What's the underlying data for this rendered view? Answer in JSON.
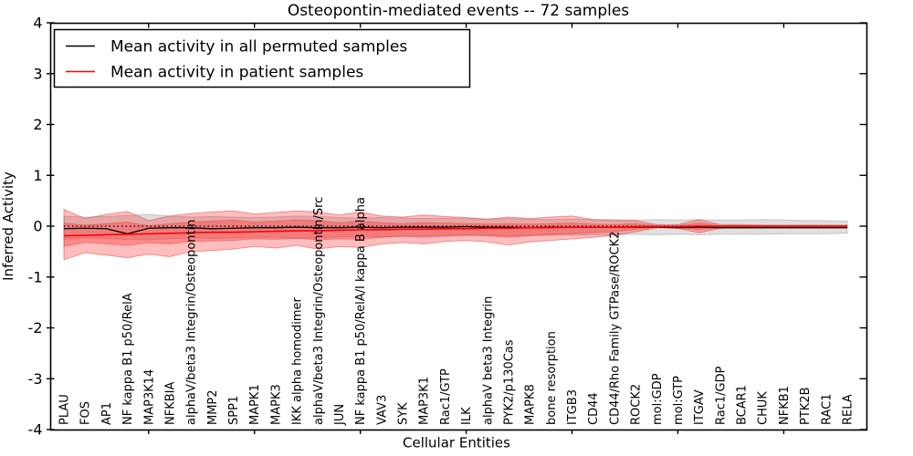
{
  "chart_data": {
    "type": "line",
    "title": "Osteopontin-mediated events -- 72 samples",
    "xlabel": "Cellular Entities",
    "ylabel": "Inferred Activity",
    "ylim": [
      -4,
      4
    ],
    "yticks": [
      4,
      3,
      2,
      1,
      0,
      -1,
      -2,
      -3,
      -4
    ],
    "xtick_positions": [
      5,
      10,
      15,
      20,
      25,
      30,
      35
    ],
    "grid": false,
    "legend": {
      "position": "upper left",
      "entries": [
        {
          "label": "Mean activity in all permuted samples",
          "color": "#000000"
        },
        {
          "label": "Mean activity in patient samples",
          "color": "#ff0000"
        }
      ]
    },
    "categories": [
      "PLAU",
      "FOS",
      "AP1",
      "NF kappa B1 p50/RelA",
      "MAP3K14",
      "NFKBIA",
      "alphaV/beta3 Integrin/Osteopontin",
      "MMP2",
      "SPP1",
      "MAPK1",
      "MAPK3",
      "IKK alpha homodimer",
      "alphaV/beta3 Integrin/Osteopontin/Src",
      "JUN",
      "NF kappa B1 p50/RelA/I kappa B alpha",
      "VAV3",
      "SYK",
      "MAP3K1",
      "Rac1/GTP",
      "ILK",
      "alphaV beta3 Integrin",
      "PYK2/p130Cas",
      "MAPK8",
      "bone resorption",
      "ITGB3",
      "CD44",
      "CD44/Rho Family GTPase/ROCK2",
      "ROCK2",
      "mol:GDP",
      "mol:GTP",
      "ITGAV",
      "Rac1/GDP",
      "BCAR1",
      "CHUK",
      "NFKB1",
      "PTK2B",
      "RAC1",
      "RELA"
    ],
    "reference_line": {
      "y": 0,
      "style": "dotted",
      "color": "#000000"
    },
    "series": [
      {
        "name": "permuted-mean",
        "color": "#000000",
        "width": 1.3,
        "values": [
          -0.05,
          -0.04,
          -0.05,
          -0.15,
          -0.04,
          -0.03,
          -0.03,
          -0.05,
          -0.04,
          -0.03,
          -0.03,
          -0.02,
          -0.03,
          -0.03,
          -0.02,
          -0.03,
          -0.02,
          -0.02,
          -0.02,
          -0.01,
          -0.02,
          -0.02,
          -0.03,
          -0.02,
          -0.02,
          -0.02,
          -0.02,
          -0.02,
          -0.02,
          -0.03,
          -0.02,
          -0.03,
          -0.03,
          -0.03,
          -0.03,
          -0.03,
          -0.03,
          -0.03
        ]
      },
      {
        "name": "patient-mean",
        "color": "#ff0000",
        "width": 1.6,
        "values": [
          -0.19,
          -0.18,
          -0.17,
          -0.16,
          -0.15,
          -0.14,
          -0.13,
          -0.12,
          -0.12,
          -0.11,
          -0.1,
          -0.09,
          -0.09,
          -0.08,
          -0.07,
          -0.07,
          -0.06,
          -0.06,
          -0.05,
          -0.05,
          -0.04,
          -0.04,
          -0.03,
          -0.03,
          -0.02,
          -0.02,
          -0.02,
          -0.01,
          -0.01,
          -0.01,
          0.0,
          0.0,
          0.0,
          0.0,
          0.0,
          0.0,
          0.0,
          0.0
        ]
      }
    ],
    "bands": [
      {
        "name": "permuted-std",
        "fill": "rgba(110,110,110,0.22)",
        "stroke": "rgba(80,80,80,0.25)",
        "upper": [
          0.2,
          0.18,
          0.19,
          0.21,
          0.23,
          0.2,
          0.18,
          0.19,
          0.18,
          0.17,
          0.18,
          0.2,
          0.19,
          0.17,
          0.16,
          0.17,
          0.16,
          0.15,
          0.16,
          0.15,
          0.14,
          0.15,
          0.14,
          0.13,
          0.14,
          0.13,
          0.13,
          0.12,
          0.13,
          0.12,
          0.13,
          0.12,
          0.12,
          0.13,
          0.12,
          0.11,
          0.11,
          0.1
        ],
        "lower": [
          -0.26,
          -0.23,
          -0.24,
          -0.26,
          -0.27,
          -0.25,
          -0.23,
          -0.24,
          -0.23,
          -0.22,
          -0.22,
          -0.24,
          -0.23,
          -0.21,
          -0.2,
          -0.21,
          -0.2,
          -0.19,
          -0.2,
          -0.19,
          -0.18,
          -0.19,
          -0.18,
          -0.17,
          -0.18,
          -0.17,
          -0.17,
          -0.16,
          -0.17,
          -0.16,
          -0.17,
          -0.16,
          -0.16,
          -0.16,
          -0.15,
          -0.15,
          -0.15,
          -0.14
        ]
      },
      {
        "name": "patient-std-outer",
        "fill": "rgba(255,40,40,0.30)",
        "stroke": "rgba(230,40,40,0.45)",
        "upper": [
          0.33,
          0.15,
          0.23,
          0.29,
          0.11,
          0.2,
          0.25,
          0.28,
          0.3,
          0.24,
          0.27,
          0.3,
          0.28,
          0.22,
          0.28,
          0.2,
          0.18,
          0.22,
          0.19,
          0.17,
          0.14,
          0.18,
          0.15,
          0.18,
          0.2,
          0.13,
          0.11,
          0.11,
          0.03,
          0.03,
          0.13,
          0.03,
          0.03,
          0.02,
          0.02,
          0.02,
          0.02,
          0.02
        ],
        "lower": [
          -0.66,
          -0.52,
          -0.57,
          -0.62,
          -0.55,
          -0.6,
          -0.5,
          -0.48,
          -0.45,
          -0.4,
          -0.43,
          -0.38,
          -0.45,
          -0.4,
          -0.42,
          -0.35,
          -0.32,
          -0.35,
          -0.3,
          -0.28,
          -0.31,
          -0.37,
          -0.31,
          -0.28,
          -0.25,
          -0.22,
          -0.18,
          -0.11,
          -0.03,
          -0.04,
          -0.13,
          -0.04,
          -0.03,
          -0.03,
          -0.02,
          -0.02,
          -0.02,
          -0.02
        ]
      },
      {
        "name": "patient-std-inner",
        "fill": "rgba(255,40,40,0.34)",
        "stroke": "rgba(230,40,40,0.35)",
        "upper": [
          0.06,
          0.02,
          0.05,
          0.08,
          0.01,
          0.05,
          0.08,
          0.1,
          0.12,
          0.08,
          0.1,
          0.12,
          0.11,
          0.07,
          0.1,
          0.07,
          0.05,
          0.07,
          0.06,
          0.05,
          0.04,
          0.05,
          0.04,
          0.05,
          0.06,
          0.04,
          0.03,
          0.05,
          0.01,
          0.01,
          0.06,
          0.01,
          0.01,
          0.01,
          0.01,
          0.01,
          0.01,
          0.01
        ],
        "lower": [
          -0.4,
          -0.32,
          -0.35,
          -0.38,
          -0.33,
          -0.35,
          -0.3,
          -0.29,
          -0.28,
          -0.25,
          -0.26,
          -0.24,
          -0.27,
          -0.25,
          -0.26,
          -0.22,
          -0.2,
          -0.22,
          -0.19,
          -0.17,
          -0.19,
          -0.22,
          -0.19,
          -0.17,
          -0.15,
          -0.13,
          -0.11,
          -0.06,
          -0.02,
          -0.02,
          -0.07,
          -0.02,
          -0.02,
          -0.02,
          -0.01,
          -0.01,
          -0.01,
          -0.01
        ]
      }
    ]
  }
}
